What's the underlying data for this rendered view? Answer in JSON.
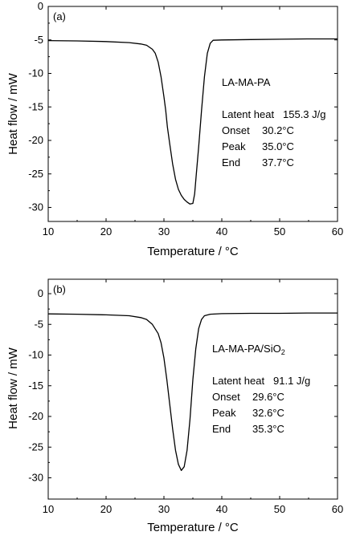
{
  "chart_data": [
    {
      "type": "line",
      "panel_label": "(a)",
      "xlabel": "Temperature / °C",
      "ylabel": "Heat flow / mW",
      "xlim": [
        10,
        60
      ],
      "ylim": [
        -32,
        0
      ],
      "xticks": [
        10,
        20,
        30,
        40,
        50,
        60
      ],
      "yticks": [
        0,
        -5,
        -10,
        -15,
        -20,
        -25,
        -30
      ],
      "series": [
        {
          "name": "LA-MA-PA",
          "x": [
            10,
            15,
            20,
            24,
            26,
            27,
            28,
            28.5,
            29,
            29.5,
            30,
            30.3,
            30.6,
            31,
            31.5,
            32,
            32.5,
            33,
            33.5,
            34,
            34.5,
            35,
            35.3,
            35.6,
            36,
            36.5,
            37,
            37.5,
            38,
            38.5,
            40,
            45,
            50,
            55,
            60
          ],
          "y": [
            -5.1,
            -5.15,
            -5.25,
            -5.4,
            -5.6,
            -5.8,
            -6.4,
            -7.0,
            -8.3,
            -10.5,
            -13.5,
            -15.5,
            -18.0,
            -20.5,
            -23.5,
            -25.8,
            -27.3,
            -28.2,
            -28.8,
            -29.2,
            -29.5,
            -29.4,
            -28.0,
            -25.0,
            -21.0,
            -15.5,
            -10.5,
            -7.0,
            -5.5,
            -5.05,
            -5.0,
            -4.95,
            -4.9,
            -4.85,
            -4.85
          ]
        }
      ],
      "annotations": {
        "sample": "LA-MA-PA",
        "rows": [
          {
            "label": "Latent heat",
            "value": "155.3 J/g"
          },
          {
            "label": "Onset",
            "value": "30.2°C"
          },
          {
            "label": "Peak",
            "value": "35.0°C"
          },
          {
            "label": "End",
            "value": "37.7°C"
          }
        ]
      }
    },
    {
      "type": "line",
      "panel_label": "(b)",
      "xlabel": "Temperature / °C",
      "ylabel": "Heat flow / mW",
      "xlim": [
        10,
        60
      ],
      "ylim": [
        -32,
        2
      ],
      "xticks": [
        10,
        20,
        30,
        40,
        50,
        60
      ],
      "yticks": [
        0,
        -5,
        -10,
        -15,
        -20,
        -25,
        -30
      ],
      "series": [
        {
          "name": "LA-MA-PA/SiO2",
          "x": [
            10,
            15,
            20,
            24,
            26,
            27,
            28,
            29,
            29.5,
            30,
            30.5,
            31,
            31.5,
            32,
            32.5,
            33,
            33.5,
            34,
            34.5,
            35,
            35.5,
            36,
            36.5,
            37,
            38,
            40,
            45,
            50,
            55,
            60
          ],
          "y": [
            -3.3,
            -3.35,
            -3.45,
            -3.6,
            -3.9,
            -4.2,
            -5.0,
            -6.5,
            -8.0,
            -10.5,
            -14.0,
            -18.0,
            -22.0,
            -25.5,
            -27.8,
            -28.8,
            -28.2,
            -25.5,
            -20.5,
            -14.0,
            -9.0,
            -5.7,
            -4.2,
            -3.6,
            -3.35,
            -3.25,
            -3.2,
            -3.2,
            -3.15,
            -3.15
          ]
        }
      ],
      "annotations": {
        "sample": "LA-MA-PA/SiO",
        "sample_sub": "2",
        "rows": [
          {
            "label": "Latent heat",
            "value": "91.1 J/g"
          },
          {
            "label": "Onset",
            "value": "29.6°C"
          },
          {
            "label": "Peak",
            "value": "32.6°C"
          },
          {
            "label": "End",
            "value": "35.3°C"
          }
        ]
      }
    }
  ]
}
